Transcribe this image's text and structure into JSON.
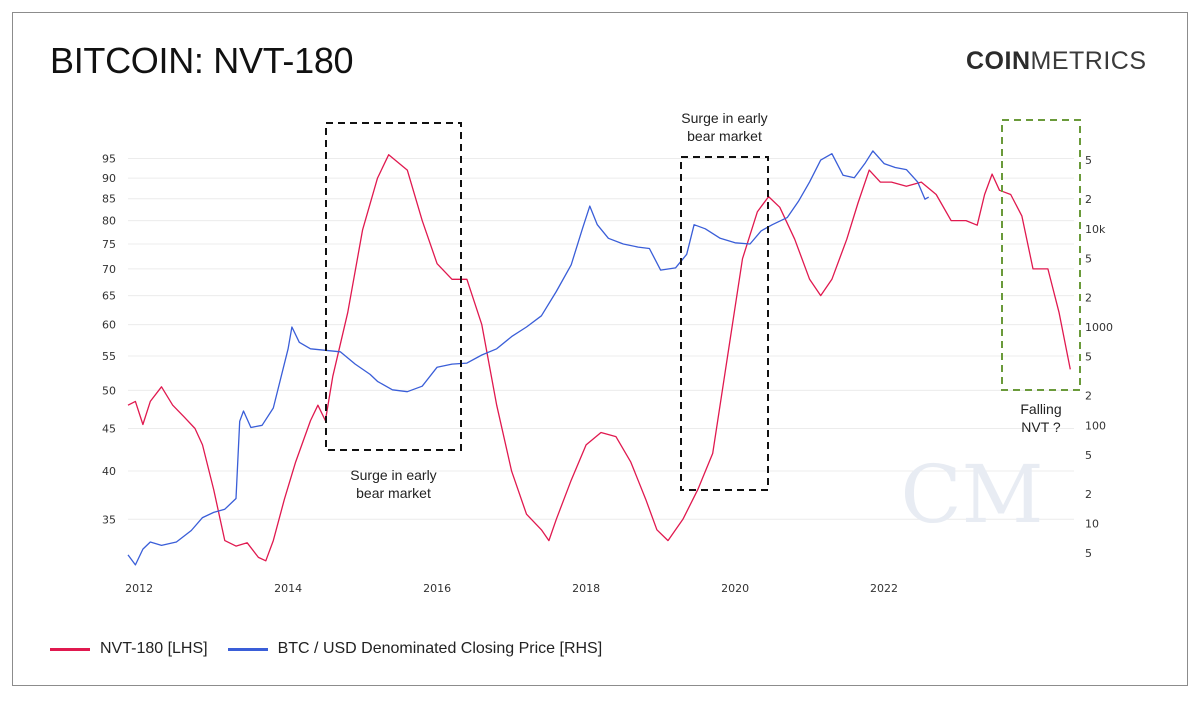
{
  "header": {
    "title": "BITCOIN: NVT-180",
    "brand_bold": "COIN",
    "brand_light": "METRICS",
    "watermark": "CM"
  },
  "colors": {
    "nvt": "#e0194f",
    "price": "#3a5ed8",
    "box_black": "#111111",
    "box_green": "#6a9a3a",
    "grid": "#ececec"
  },
  "chart_data": {
    "type": "line",
    "x_axis": {
      "ticks": [
        "2012",
        "2014",
        "2016",
        "2018",
        "2020",
        "2022"
      ]
    },
    "left_axis": {
      "ticks": [
        35,
        40,
        45,
        50,
        55,
        60,
        65,
        70,
        75,
        80,
        85,
        90,
        95
      ],
      "scale": "log"
    },
    "right_axis": {
      "ticks": [
        "5",
        "10",
        "2",
        "5",
        "100",
        "2",
        "5",
        "1000",
        "2",
        "5",
        "10k",
        "2",
        "5"
      ],
      "scale": "log"
    },
    "series": [
      {
        "name": "NVT-180 [LHS]",
        "axis": "left",
        "points": [
          [
            2011.85,
            48
          ],
          [
            2011.95,
            48.5
          ],
          [
            2012.05,
            45.5
          ],
          [
            2012.15,
            48.5
          ],
          [
            2012.3,
            50.5
          ],
          [
            2012.45,
            48
          ],
          [
            2012.6,
            46.5
          ],
          [
            2012.75,
            45
          ],
          [
            2012.85,
            43
          ],
          [
            2013.0,
            38
          ],
          [
            2013.15,
            33
          ],
          [
            2013.3,
            32.5
          ],
          [
            2013.45,
            32.8
          ],
          [
            2013.6,
            31.5
          ],
          [
            2013.7,
            31.2
          ],
          [
            2013.8,
            33
          ],
          [
            2013.95,
            37
          ],
          [
            2014.1,
            41
          ],
          [
            2014.3,
            46
          ],
          [
            2014.4,
            48
          ],
          [
            2014.5,
            46
          ],
          [
            2014.6,
            52
          ],
          [
            2014.8,
            62
          ],
          [
            2015.0,
            78
          ],
          [
            2015.2,
            90
          ],
          [
            2015.35,
            96
          ],
          [
            2015.6,
            92
          ],
          [
            2015.8,
            80
          ],
          [
            2016.0,
            71
          ],
          [
            2016.2,
            68
          ],
          [
            2016.4,
            68
          ],
          [
            2016.6,
            60
          ],
          [
            2016.8,
            48
          ],
          [
            2017.0,
            40
          ],
          [
            2017.2,
            35.5
          ],
          [
            2017.4,
            34
          ],
          [
            2017.5,
            33
          ],
          [
            2017.6,
            35
          ],
          [
            2017.8,
            39
          ],
          [
            2018.0,
            43
          ],
          [
            2018.2,
            44.5
          ],
          [
            2018.4,
            44
          ],
          [
            2018.6,
            41
          ],
          [
            2018.8,
            37
          ],
          [
            2018.95,
            34
          ],
          [
            2019.1,
            33
          ],
          [
            2019.3,
            35
          ],
          [
            2019.5,
            38
          ],
          [
            2019.7,
            42
          ],
          [
            2019.9,
            55
          ],
          [
            2020.1,
            72
          ],
          [
            2020.3,
            82
          ],
          [
            2020.45,
            85.5
          ],
          [
            2020.6,
            83
          ],
          [
            2020.8,
            76
          ],
          [
            2021.0,
            68
          ],
          [
            2021.15,
            65
          ],
          [
            2021.3,
            68
          ],
          [
            2021.5,
            76
          ],
          [
            2021.65,
            84
          ],
          [
            2021.8,
            92
          ],
          [
            2021.95,
            89
          ],
          [
            2022.1,
            89
          ],
          [
            2022.3,
            88
          ],
          [
            2022.5,
            89
          ],
          [
            2022.7,
            86
          ],
          [
            2022.9,
            80
          ],
          [
            2023.1,
            80
          ],
          [
            2023.25,
            79
          ],
          [
            2023.35,
            86
          ],
          [
            2023.45,
            91
          ],
          [
            2023.55,
            87
          ],
          [
            2023.7,
            86
          ],
          [
            2023.85,
            81
          ],
          [
            2024.0,
            70
          ],
          [
            2024.2,
            70
          ],
          [
            2024.35,
            62
          ],
          [
            2024.5,
            53
          ]
        ]
      },
      {
        "name": "BTC / USD Denominated Closing Price [RHS]",
        "axis": "right",
        "points": [
          [
            2011.85,
            4.8
          ],
          [
            2011.95,
            3.8
          ],
          [
            2012.05,
            5.5
          ],
          [
            2012.15,
            6.5
          ],
          [
            2012.3,
            6.0
          ],
          [
            2012.5,
            6.5
          ],
          [
            2012.7,
            8.5
          ],
          [
            2012.85,
            11.5
          ],
          [
            2013.0,
            13
          ],
          [
            2013.15,
            14
          ],
          [
            2013.3,
            18
          ],
          [
            2013.35,
            110
          ],
          [
            2013.4,
            140
          ],
          [
            2013.5,
            95
          ],
          [
            2013.65,
            100
          ],
          [
            2013.8,
            150
          ],
          [
            2014.0,
            600
          ],
          [
            2014.05,
            1000
          ],
          [
            2014.15,
            700
          ],
          [
            2014.3,
            600
          ],
          [
            2014.5,
            580
          ],
          [
            2014.7,
            560
          ],
          [
            2014.9,
            420
          ],
          [
            2015.1,
            330
          ],
          [
            2015.2,
            280
          ],
          [
            2015.4,
            230
          ],
          [
            2015.6,
            220
          ],
          [
            2015.8,
            250
          ],
          [
            2016.0,
            390
          ],
          [
            2016.2,
            420
          ],
          [
            2016.4,
            430
          ],
          [
            2016.6,
            520
          ],
          [
            2016.8,
            600
          ],
          [
            2017.0,
            800
          ],
          [
            2017.2,
            1000
          ],
          [
            2017.4,
            1300
          ],
          [
            2017.6,
            2300
          ],
          [
            2017.8,
            4300
          ],
          [
            2017.95,
            10000
          ],
          [
            2018.05,
            17000
          ],
          [
            2018.15,
            11000
          ],
          [
            2018.3,
            8000
          ],
          [
            2018.5,
            7000
          ],
          [
            2018.7,
            6500
          ],
          [
            2018.85,
            6300
          ],
          [
            2019.0,
            3800
          ],
          [
            2019.2,
            4000
          ],
          [
            2019.35,
            5500
          ],
          [
            2019.45,
            11000
          ],
          [
            2019.6,
            10000
          ],
          [
            2019.8,
            8000
          ],
          [
            2020.0,
            7200
          ],
          [
            2020.2,
            7000
          ],
          [
            2020.35,
            9500
          ],
          [
            2020.5,
            11000
          ],
          [
            2020.7,
            13000
          ],
          [
            2020.85,
            19000
          ],
          [
            2021.0,
            30000
          ],
          [
            2021.15,
            50000
          ],
          [
            2021.3,
            58000
          ],
          [
            2021.45,
            35000
          ],
          [
            2021.6,
            33000
          ],
          [
            2021.75,
            47000
          ],
          [
            2021.85,
            62000
          ],
          [
            2022.0,
            46000
          ],
          [
            2022.15,
            42000
          ],
          [
            2022.3,
            40000
          ],
          [
            2022.45,
            30000
          ],
          [
            2022.55,
            20000
          ],
          [
            2022.6,
            21000
          ]
        ]
      }
    ],
    "annotations": [
      {
        "text_lines": [
          "Surge in early",
          "bear market"
        ],
        "box_color": "black",
        "x_range": [
          2014.15,
          2015.75
        ],
        "label_position": "below"
      },
      {
        "text_lines": [
          "Surge in early",
          "bear market"
        ],
        "box_color": "black",
        "x_range": [
          2018.1,
          2019.2
        ],
        "label_position": "above"
      },
      {
        "text_lines": [
          "Falling",
          "NVT ?"
        ],
        "box_color": "green",
        "x_range": [
          2021.8,
          2022.6
        ],
        "label_position": "below"
      }
    ],
    "legend_placement": "bottom-left",
    "grid": true
  },
  "legend": {
    "items": [
      {
        "label": "NVT-180 [LHS]",
        "color": "#e0194f"
      },
      {
        "label": "BTC / USD Denominated Closing Price [RHS]",
        "color": "#3a5ed8"
      }
    ]
  }
}
